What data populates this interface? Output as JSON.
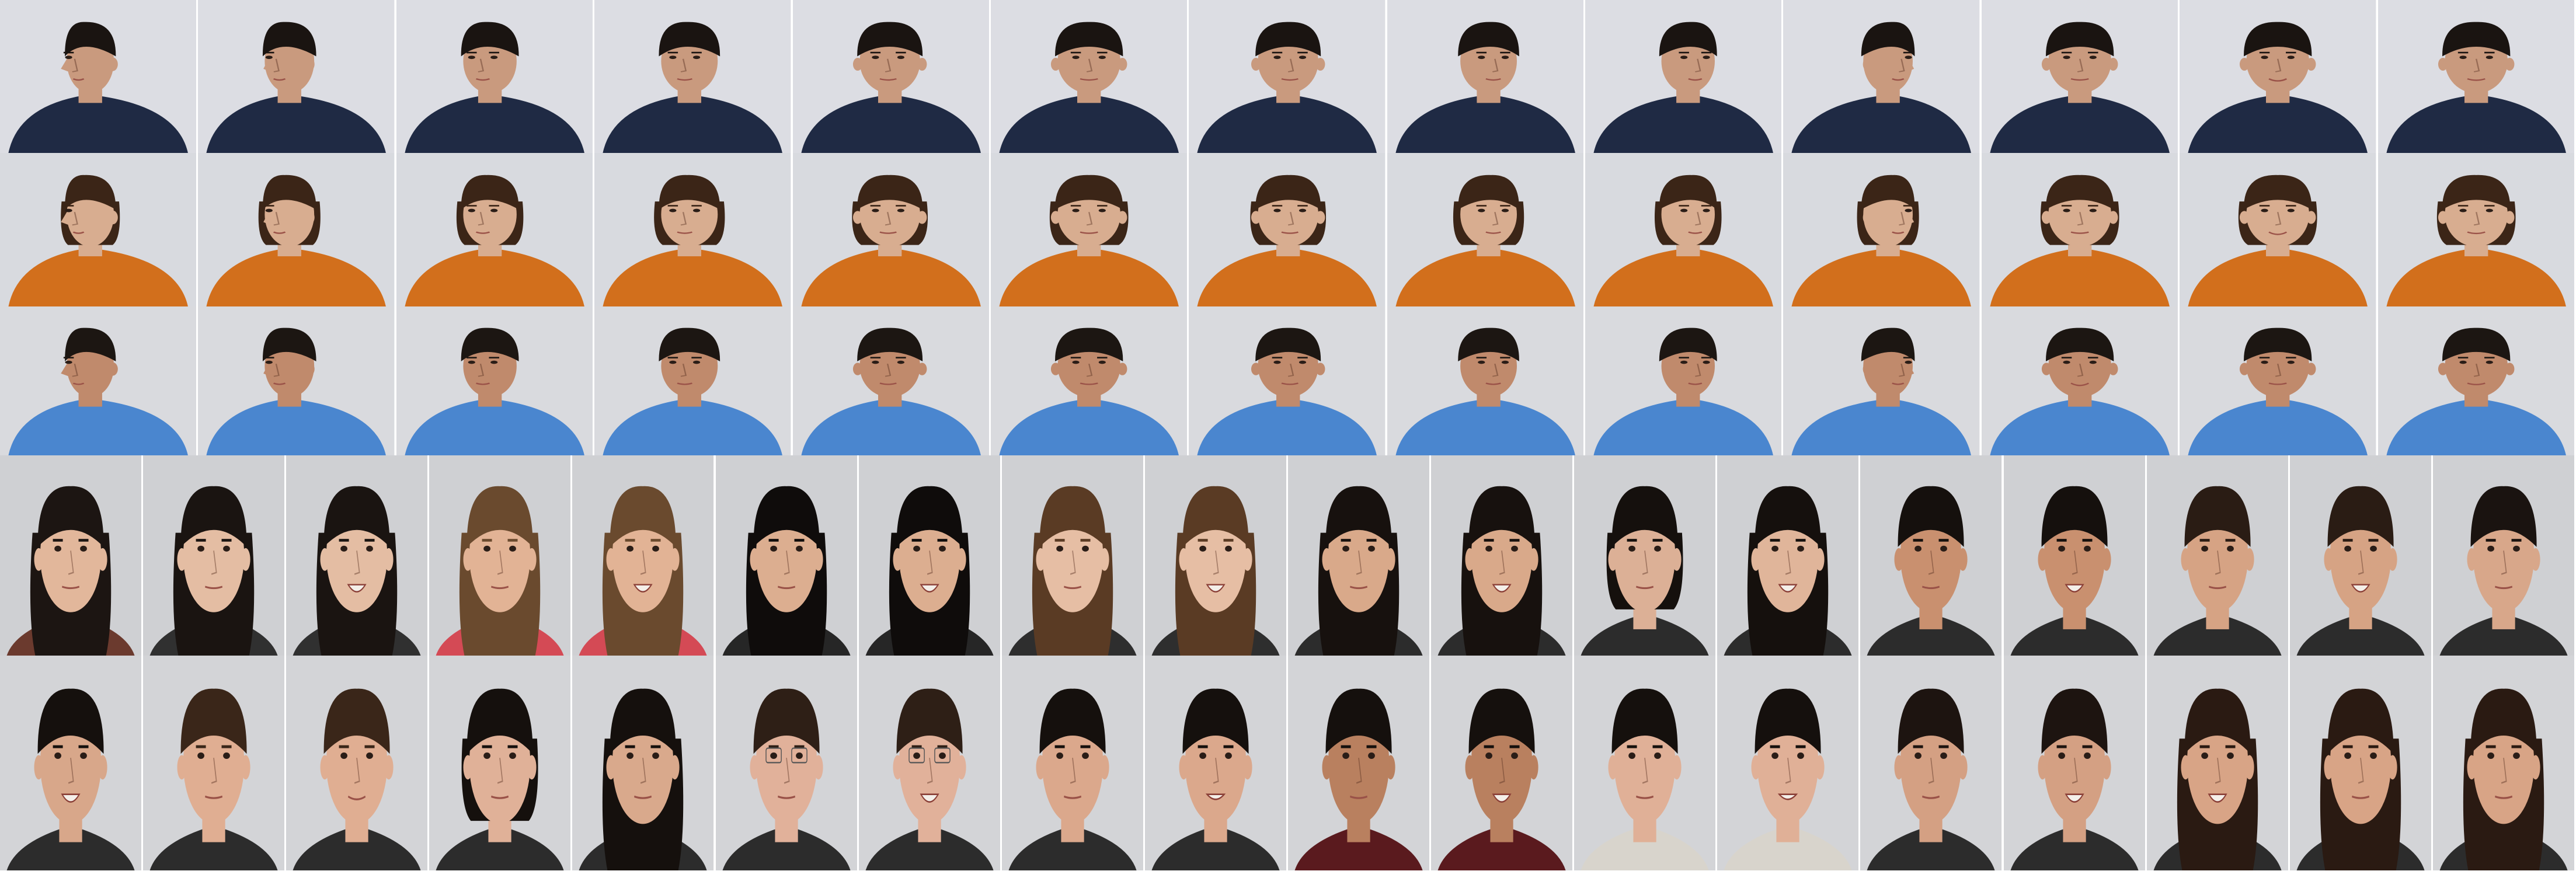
{
  "image": {
    "background": "#ffffff",
    "rows": [
      {
        "kind": "pose-series",
        "count": 13,
        "bg": "#dcdde3",
        "shirt": "#1f2a44",
        "skin": "#c99a7e",
        "hair": "#1a1411",
        "hair_style": "short",
        "yaw": [
          -1,
          -0.85,
          -0.6,
          -0.4,
          -0.15,
          0,
          0.15,
          0.4,
          0.6,
          0.85,
          0,
          0,
          0
        ],
        "smile": [
          0,
          0,
          0,
          0,
          0,
          0,
          0,
          0,
          0,
          0,
          0,
          0.4,
          0.1
        ]
      },
      {
        "kind": "pose-series",
        "count": 13,
        "bg": "#d8dadf",
        "shirt": "#d26f1c",
        "skin": "#d8ad90",
        "hair": "#3b2517",
        "hair_style": "medium",
        "yaw": [
          -1,
          -0.85,
          -0.6,
          -0.4,
          -0.15,
          0,
          0.15,
          0.4,
          0.6,
          0.85,
          0,
          0,
          0
        ],
        "smile": [
          0,
          0,
          0,
          0,
          0,
          0,
          0,
          0,
          0,
          0,
          0,
          0.5,
          0.1
        ]
      },
      {
        "kind": "pose-series",
        "count": 13,
        "bg": "#d9dade",
        "shirt": "#4a86cf",
        "skin": "#c08a6c",
        "hair": "#1c1612",
        "hair_style": "short",
        "yaw": [
          -1,
          -0.85,
          -0.6,
          -0.4,
          -0.15,
          0,
          0.15,
          0.4,
          0.6,
          0.85,
          0,
          0,
          0
        ],
        "smile": [
          0,
          0,
          0,
          0,
          0,
          0,
          0,
          0,
          0,
          0,
          0.5,
          0,
          0.1
        ]
      },
      {
        "kind": "people",
        "count": 18,
        "bg": "#cfd0d3",
        "people": [
          {
            "hair": "#1c1512",
            "hair_style": "long",
            "skin": "#e2b79b",
            "shirt": "#6b3a2e",
            "smile": 0
          },
          {
            "hair": "#1a1411",
            "hair_style": "long",
            "skin": "#e4bda3",
            "shirt": "#303030",
            "smile": 0
          },
          {
            "hair": "#1a1411",
            "hair_style": "long",
            "skin": "#e4bda3",
            "shirt": "#303030",
            "smile": 1
          },
          {
            "hair": "#6a4a2e",
            "hair_style": "long",
            "skin": "#e2b395",
            "shirt": "#d44a55",
            "smile": 0
          },
          {
            "hair": "#6a4a2e",
            "hair_style": "long",
            "skin": "#e2b395",
            "shirt": "#d44a55",
            "smile": 1
          },
          {
            "hair": "#0f0c0b",
            "hair_style": "long",
            "skin": "#dcae90",
            "shirt": "#262626",
            "smile": 0
          },
          {
            "hair": "#0f0c0b",
            "hair_style": "long",
            "skin": "#dcae90",
            "shirt": "#262626",
            "smile": 1
          },
          {
            "hair": "#5a3b24",
            "hair_style": "long",
            "skin": "#e6bea4",
            "shirt": "#2e2e2e",
            "smile": 0
          },
          {
            "hair": "#5a3b24",
            "hair_style": "long",
            "skin": "#e6bea4",
            "shirt": "#2e2e2e",
            "smile": 1
          },
          {
            "hair": "#17110e",
            "hair_style": "long",
            "skin": "#d9a98a",
            "shirt": "#2c2c2c",
            "smile": 0
          },
          {
            "hair": "#17110e",
            "hair_style": "long",
            "skin": "#d9a98a",
            "shirt": "#2c2c2c",
            "smile": 1
          },
          {
            "hair": "#15100d",
            "hair_style": "medium",
            "skin": "#dcb096",
            "shirt": "#2c2c2c",
            "smile": 0
          },
          {
            "hair": "#15100d",
            "hair_style": "long",
            "skin": "#e0b59a",
            "shirt": "#2c2c2c",
            "smile": 1
          },
          {
            "hair": "#15100d",
            "hair_style": "short",
            "skin": "#c9906f",
            "shirt": "#2c2c2c",
            "smile": 0
          },
          {
            "hair": "#15100d",
            "hair_style": "short",
            "skin": "#c9906f",
            "shirt": "#2c2c2c",
            "smile": 1
          },
          {
            "hair": "#2a1c14",
            "hair_style": "short",
            "skin": "#d6a384",
            "shirt": "#2c2c2c",
            "smile": 0
          },
          {
            "hair": "#2a1c14",
            "hair_style": "short",
            "skin": "#d6a384",
            "shirt": "#2c2c2c",
            "smile": 1
          },
          {
            "hair": "#1a1310",
            "hair_style": "short",
            "skin": "#d8a78a",
            "shirt": "#2c2c2c",
            "smile": 0
          }
        ]
      },
      {
        "kind": "people",
        "count": 18,
        "bg": "#d3d4d7",
        "people": [
          {
            "hair": "#15100d",
            "hair_style": "short",
            "skin": "#d8a78a",
            "shirt": "#2c2c2c",
            "smile": 1
          },
          {
            "hair": "#3a2619",
            "hair_style": "short",
            "skin": "#e0ae92",
            "shirt": "#2c2c2c",
            "smile": 0
          },
          {
            "hair": "#3a2619",
            "hair_style": "short",
            "skin": "#e0ae92",
            "shirt": "#2c2c2c",
            "smile": 0.4
          },
          {
            "hair": "#15100d",
            "hair_style": "medium",
            "skin": "#e0b198",
            "shirt": "#2c2c2c",
            "smile": 0
          },
          {
            "hair": "#15100d",
            "hair_style": "long",
            "skin": "#d9a98c",
            "shirt": "#2c2c2c",
            "smile": 0
          },
          {
            "hair": "#2e1f16",
            "hair_style": "short",
            "skin": "#e1b19a",
            "shirt": "#2c2c2c",
            "smile": 0,
            "glasses": true
          },
          {
            "hair": "#2e1f16",
            "hair_style": "short",
            "skin": "#e1b19a",
            "shirt": "#2c2c2c",
            "smile": 1,
            "glasses": true
          },
          {
            "hair": "#15100d",
            "hair_style": "short",
            "skin": "#dba88c",
            "shirt": "#2c2c2c",
            "smile": 0
          },
          {
            "hair": "#15100d",
            "hair_style": "short",
            "skin": "#dba88c",
            "shirt": "#2c2c2c",
            "smile": 0.6
          },
          {
            "hair": "#15100d",
            "hair_style": "short",
            "skin": "#b9805f",
            "shirt": "#5a1a1e",
            "smile": 0
          },
          {
            "hair": "#15100d",
            "hair_style": "short",
            "skin": "#b9805f",
            "shirt": "#5a1a1e",
            "smile": 1
          },
          {
            "hair": "#15100d",
            "hair_style": "short",
            "skin": "#e0b097",
            "shirt": "#d8d4cc",
            "smile": 0
          },
          {
            "hair": "#15100d",
            "hair_style": "short",
            "skin": "#e0b097",
            "shirt": "#d8d4cc",
            "smile": 0.6
          },
          {
            "hair": "#1d1410",
            "hair_style": "short",
            "skin": "#d4a083",
            "shirt": "#2c2c2c",
            "smile": 0
          },
          {
            "hair": "#1d1410",
            "hair_style": "short",
            "skin": "#d4a083",
            "shirt": "#2c2c2c",
            "smile": 1
          },
          {
            "hair": "#2a1a12",
            "hair_style": "long",
            "skin": "#d8a486",
            "shirt": "#2c2c2c",
            "smile": 1
          },
          {
            "hair": "#2a1a12",
            "hair_style": "long",
            "skin": "#d8a486",
            "shirt": "#2c2c2c",
            "smile": 0
          },
          {
            "hair": "#2a1a12",
            "hair_style": "long",
            "skin": "#d8a486",
            "shirt": "#2c2c2c",
            "smile": 0
          }
        ]
      }
    ]
  }
}
